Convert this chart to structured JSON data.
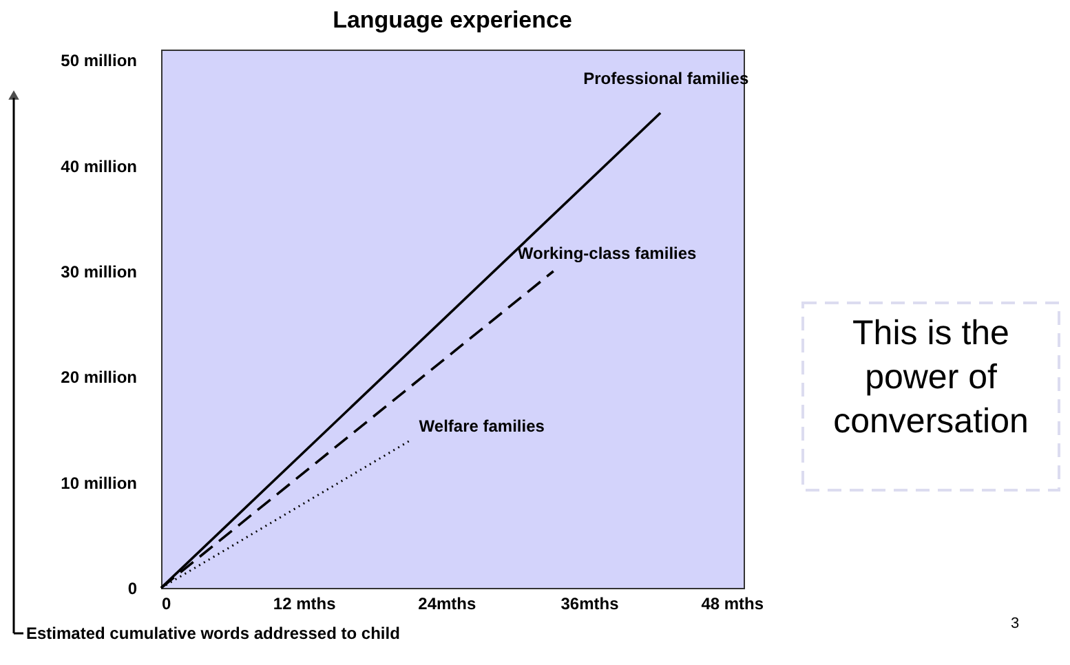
{
  "chart_data": {
    "type": "line",
    "title": "Language experience",
    "xlabel": "Estimated cumulative words addressed to child",
    "series": [
      {
        "name": "Professional families",
        "color": "#000000",
        "line_style": "solid",
        "x": [
          0,
          42
        ],
        "values": [
          0,
          45
        ]
      },
      {
        "name": "Working-class families",
        "color": "#000000",
        "line_style": "dashed",
        "x": [
          0,
          33
        ],
        "values": [
          0,
          30
        ]
      },
      {
        "name": "Welfare families",
        "color": "#000000",
        "line_style": "dotted",
        "x": [
          0,
          21
        ],
        "values": [
          0,
          14
        ]
      }
    ],
    "xlim": [
      0,
      49
    ],
    "ylim": [
      0,
      51
    ],
    "xticks": [
      0,
      {
        "value": 12,
        "label": "12 mths"
      },
      {
        "value": 24,
        "label": "24mths"
      },
      {
        "value": 36,
        "label": "36mths"
      },
      {
        "value": 48,
        "label": "48 mths"
      }
    ],
    "yticks": [
      0,
      {
        "value": 10,
        "label": "10 million"
      },
      {
        "value": 20,
        "label": "20 million"
      },
      {
        "value": 30,
        "label": "30 million"
      },
      {
        "value": 40,
        "label": "40 million"
      },
      {
        "value": 50,
        "label": "50 million"
      }
    ],
    "grid": false,
    "marker": "none",
    "annotations": [
      "This is the power of conversation",
      "3"
    ]
  }
}
